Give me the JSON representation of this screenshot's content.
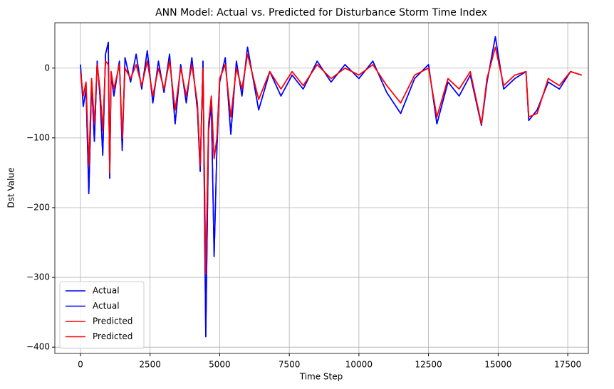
{
  "chart_data": {
    "type": "line",
    "title": "ANN Model: Actual vs. Predicted for Disturbance Storm Time Index",
    "x_label": "Time Step",
    "y_label": "Dst Value",
    "x": [
      0,
      100,
      200,
      300,
      400,
      500,
      600,
      700,
      800,
      900,
      1000,
      1050,
      1100,
      1200,
      1400,
      1500,
      1600,
      1800,
      2000,
      2200,
      2400,
      2600,
      2800,
      3000,
      3200,
      3400,
      3600,
      3800,
      4000,
      4200,
      4300,
      4400,
      4500,
      4600,
      4700,
      4800,
      4900,
      5000,
      5200,
      5400,
      5600,
      5800,
      6000,
      6400,
      6800,
      7200,
      7600,
      8000,
      8500,
      9000,
      9500,
      10000,
      10500,
      11000,
      11500,
      12000,
      12500,
      12800,
      13200,
      13600,
      14000,
      14400,
      14600,
      14900,
      15200,
      15600,
      16000,
      16100,
      16400,
      16800,
      17200,
      17600,
      18000
    ],
    "series": [
      {
        "name": "Actual",
        "color": "#0000ff",
        "values": [
          5,
          -55,
          -30,
          -180,
          -20,
          -105,
          10,
          -40,
          -125,
          20,
          37,
          -158,
          -10,
          -40,
          10,
          -118,
          15,
          -20,
          20,
          -30,
          25,
          -50,
          10,
          -35,
          20,
          -80,
          5,
          -50,
          15,
          -60,
          -148,
          10,
          -385,
          -90,
          -50,
          -270,
          -115,
          -20,
          15,
          -95,
          10,
          -40,
          30,
          -60,
          -5,
          -40,
          -10,
          -30,
          10,
          -20,
          5,
          -15,
          10,
          -35,
          -65,
          -15,
          5,
          -80,
          -20,
          -40,
          -10,
          -82,
          -20,
          45,
          -30,
          -15,
          -5,
          -75,
          -60,
          -20,
          -30,
          -5,
          -10
        ]
      },
      {
        "name": "Actual",
        "color": "#0000ff",
        "values": [
          5,
          -55,
          -30,
          -180,
          -20,
          -105,
          10,
          -40,
          -125,
          20,
          37,
          -158,
          -10,
          -40,
          10,
          -118,
          15,
          -20,
          20,
          -30,
          25,
          -50,
          10,
          -35,
          20,
          -80,
          5,
          -50,
          15,
          -60,
          -148,
          10,
          -385,
          -90,
          -50,
          -270,
          -115,
          -20,
          15,
          -95,
          10,
          -40,
          30,
          -60,
          -5,
          -40,
          -10,
          -30,
          10,
          -20,
          5,
          -15,
          10,
          -35,
          -65,
          -15,
          5,
          -80,
          -20,
          -40,
          -10,
          -82,
          -20,
          45,
          -30,
          -15,
          -5,
          -75,
          -60,
          -20,
          -30,
          -5,
          -10
        ]
      },
      {
        "name": "Predicted",
        "color": "#ff0000",
        "values": [
          -5,
          -40,
          -20,
          -140,
          -15,
          -80,
          5,
          -30,
          -90,
          10,
          5,
          -150,
          -5,
          -30,
          5,
          -100,
          0,
          -15,
          5,
          -25,
          10,
          -40,
          0,
          -30,
          10,
          -60,
          0,
          -40,
          5,
          -50,
          -140,
          0,
          -295,
          -80,
          -40,
          -130,
          -100,
          -15,
          5,
          -70,
          0,
          -30,
          20,
          -45,
          -5,
          -30,
          -5,
          -25,
          5,
          -15,
          0,
          -10,
          5,
          -25,
          -50,
          -10,
          0,
          -70,
          -15,
          -30,
          -5,
          -80,
          -15,
          30,
          -25,
          -10,
          -5,
          -70,
          -65,
          -15,
          -25,
          -5,
          -10
        ]
      },
      {
        "name": "Predicted",
        "color": "#ff0000",
        "values": [
          -5,
          -40,
          -20,
          -140,
          -15,
          -80,
          5,
          -30,
          -90,
          10,
          5,
          -150,
          -5,
          -30,
          5,
          -100,
          0,
          -15,
          5,
          -25,
          10,
          -40,
          0,
          -30,
          10,
          -60,
          0,
          -40,
          5,
          -50,
          -140,
          0,
          -295,
          -80,
          -40,
          -130,
          -100,
          -15,
          5,
          -70,
          0,
          -30,
          20,
          -45,
          -5,
          -30,
          -5,
          -25,
          5,
          -15,
          0,
          -10,
          5,
          -25,
          -50,
          -10,
          0,
          -70,
          -15,
          -30,
          -5,
          -80,
          -15,
          30,
          -25,
          -10,
          -5,
          -70,
          -65,
          -15,
          -25,
          -5,
          -10
        ]
      }
    ],
    "xlim": [
      -920,
      18240
    ],
    "ylim": [
      -409,
      65
    ],
    "xticks": [
      0,
      2500,
      5000,
      7500,
      10000,
      12500,
      15000,
      17500
    ],
    "yticks": [
      {
        "value": -400,
        "label": "−400"
      },
      {
        "value": -300,
        "label": "−300"
      },
      {
        "value": -200,
        "label": "−200"
      },
      {
        "value": -100,
        "label": "−100"
      },
      0
    ],
    "grid": true,
    "legend": "lower left"
  }
}
